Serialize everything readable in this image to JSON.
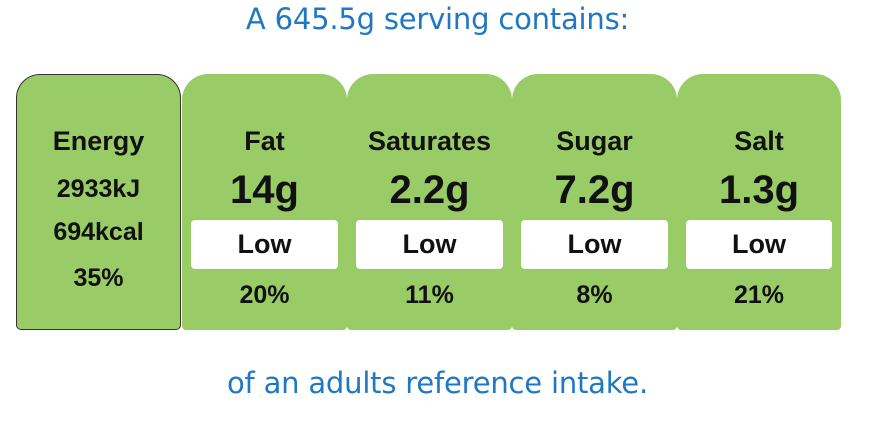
{
  "heading": "A 645.5g serving contains:",
  "footer": "of an adults reference intake.",
  "colors": {
    "panel": "#99cc66",
    "text_blue": "#1f78c1",
    "level_box": "#ffffff"
  },
  "energy": {
    "label": "Energy",
    "kj": "2933kJ",
    "kcal": "694kcal",
    "percent": "35%"
  },
  "nutrients": [
    {
      "label": "Fat",
      "amount": "14g",
      "level": "Low",
      "percent": "20%"
    },
    {
      "label": "Saturates",
      "amount": "2.2g",
      "level": "Low",
      "percent": "11%"
    },
    {
      "label": "Sugar",
      "amount": "7.2g",
      "level": "Low",
      "percent": "8%"
    },
    {
      "label": "Salt",
      "amount": "1.3g",
      "level": "Low",
      "percent": "21%"
    }
  ]
}
